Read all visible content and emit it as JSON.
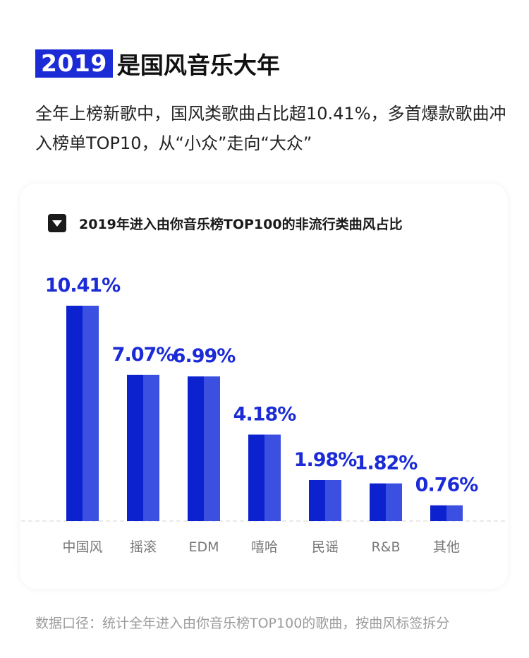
{
  "header": {
    "year_badge": "2019",
    "title": "是国风音乐大年",
    "intro": "全年上榜新歌中，国风类歌曲占比超10.41%，多首爆款歌曲冲入榜单TOP10，从“小众”走向“大众”"
  },
  "card": {
    "title": "2019年进入由你音乐榜TOP100的非流行类曲风占比",
    "icon": "triangle-down-icon"
  },
  "footnote": "数据口径：统计全年进入由你音乐榜TOP100的歌曲，按曲风标签拆分",
  "colors": {
    "accent": "#1b2bd6",
    "bar_dark": "#0d22cf",
    "bar_light": "#3b4fe0",
    "value_label": "#1b2bd6",
    "category_label": "#777777",
    "baseline": "#e2e2e2"
  },
  "chart_data": {
    "type": "bar",
    "title": "2019年进入由你音乐榜TOP100的非流行类曲风占比",
    "categories": [
      "中国风",
      "摇滚",
      "EDM",
      "嘻哈",
      "民谣",
      "R&B",
      "其他"
    ],
    "values": [
      10.41,
      7.07,
      6.99,
      4.18,
      1.98,
      1.82,
      0.76
    ],
    "value_labels": [
      "10.41%",
      "7.07%",
      "6.99%",
      "4.18%",
      "1.98%",
      "1.82%",
      "0.76%"
    ],
    "unit": "%",
    "ylim": [
      0,
      10.41
    ],
    "grid": false,
    "legend": "none"
  }
}
